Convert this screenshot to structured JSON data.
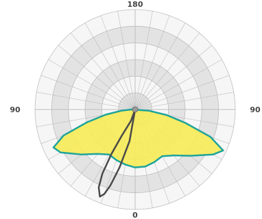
{
  "chart_data": {
    "type": "polar",
    "title": "",
    "angle_labels": {
      "top": "180",
      "left": "90",
      "right": "90",
      "bottom": "0"
    },
    "angle_unit": "degrees",
    "angle_zero": "bottom",
    "angle_step_grid": 10,
    "radial_rings": 6,
    "ring_shading": "alternating",
    "grid": true,
    "colors": {
      "background": "#ffffff",
      "ring_light": "#f6f6f6",
      "ring_dark": "#e3e3e3",
      "grid_line": "#bdbdbd",
      "fill_series": "#f7ec57",
      "fill_series_outline": "#1ea39a",
      "line_series": "#4a4a4a",
      "center_dot": "#9a9a9a"
    },
    "series": [
      {
        "kind": "filled",
        "color": "#f7ec57",
        "outline": "#1ea39a",
        "points": [
          {
            "angle": 0,
            "r": 0.58
          },
          {
            "angle": 10,
            "r": 0.56
          },
          {
            "angle": 20,
            "r": 0.54
          },
          {
            "angle": 30,
            "r": 0.52
          },
          {
            "angle": 40,
            "r": 0.58
          },
          {
            "angle": 50,
            "r": 0.7
          },
          {
            "angle": 60,
            "r": 0.86
          },
          {
            "angle": 65,
            "r": 0.9
          },
          {
            "angle": 70,
            "r": 0.76
          },
          {
            "angle": 75,
            "r": 0.5
          },
          {
            "angle": 80,
            "r": 0.3
          },
          {
            "angle": 85,
            "r": 0.14
          },
          {
            "angle": 90,
            "r": 0.04
          },
          {
            "angle": 275,
            "r": 0.14
          },
          {
            "angle": 280,
            "r": 0.32
          },
          {
            "angle": 285,
            "r": 0.52
          },
          {
            "angle": 290,
            "r": 0.8
          },
          {
            "angle": 295,
            "r": 0.97
          },
          {
            "angle": 300,
            "r": 0.9
          },
          {
            "angle": 310,
            "r": 0.72
          },
          {
            "angle": 320,
            "r": 0.6
          },
          {
            "angle": 330,
            "r": 0.54
          },
          {
            "angle": 340,
            "r": 0.56
          },
          {
            "angle": 350,
            "r": 0.58
          }
        ]
      },
      {
        "kind": "line",
        "color": "#4a4a4a",
        "points": [
          {
            "angle": 0,
            "r": 0.0
          },
          {
            "angle": 10,
            "r": 0.32
          },
          {
            "angle": 15,
            "r": 0.6
          },
          {
            "angle": 18,
            "r": 0.8
          },
          {
            "angle": 20,
            "r": 0.9
          },
          {
            "angle": 22,
            "r": 0.94
          },
          {
            "angle": 25,
            "r": 0.86
          },
          {
            "angle": 27,
            "r": 0.72
          },
          {
            "angle": 28,
            "r": 0.5
          },
          {
            "angle": 27,
            "r": 0.3
          },
          {
            "angle": 20,
            "r": 0.12
          },
          {
            "angle": 0,
            "r": 0.0
          }
        ]
      }
    ]
  }
}
